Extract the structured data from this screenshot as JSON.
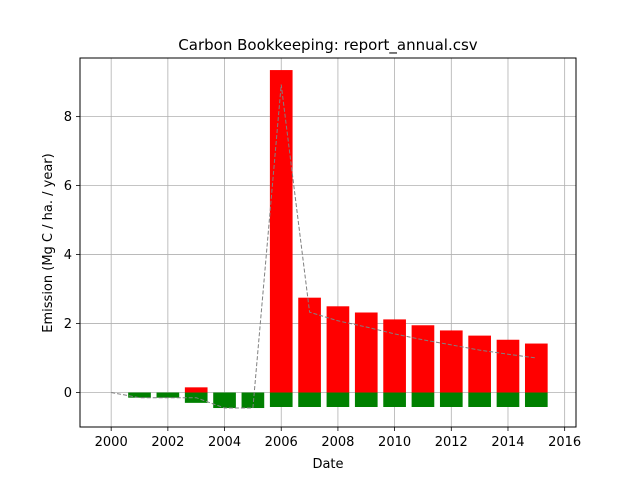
{
  "chart_data": {
    "type": "bar",
    "title": "Carbon Bookkeeping: report_annual.csv",
    "xlabel": "Date",
    "ylabel": "Emission (Mg C / ha. / year)",
    "xlim": [
      1998.9,
      2016.4
    ],
    "ylim": [
      -1.0,
      9.7
    ],
    "xticks": [
      "2000",
      "2002",
      "2004",
      "2006",
      "2008",
      "2010",
      "2012",
      "2014",
      "2016"
    ],
    "yticks": [
      "0",
      "2",
      "4",
      "6",
      "8"
    ],
    "grid": true,
    "x": [
      2001,
      2002,
      2003,
      2004,
      2005,
      2006,
      2007,
      2008,
      2009,
      2010,
      2011,
      2012,
      2013,
      2014,
      2015
    ],
    "series": [
      {
        "color": "#ff0000",
        "values": [
          0,
          0,
          0.15,
          0,
          0,
          9.35,
          2.75,
          2.5,
          2.32,
          2.12,
          1.95,
          1.8,
          1.65,
          1.53,
          1.42
        ]
      },
      {
        "color": "#008000",
        "values": [
          -0.15,
          -0.15,
          -0.3,
          -0.45,
          -0.45,
          -0.42,
          -0.42,
          -0.42,
          -0.42,
          -0.42,
          -0.42,
          -0.42,
          -0.42,
          -0.42,
          -0.42
        ]
      }
    ],
    "net_line": {
      "color": "#808080",
      "style": "dashed",
      "x": [
        2000,
        2001,
        2002,
        2003,
        2004,
        2005,
        2006,
        2007,
        2008,
        2009,
        2010,
        2011,
        2012,
        2013,
        2014,
        2015
      ],
      "y": [
        0,
        -0.15,
        -0.15,
        -0.15,
        -0.45,
        -0.45,
        8.93,
        2.33,
        2.08,
        1.9,
        1.7,
        1.53,
        1.38,
        1.23,
        1.11,
        1.0
      ]
    }
  }
}
